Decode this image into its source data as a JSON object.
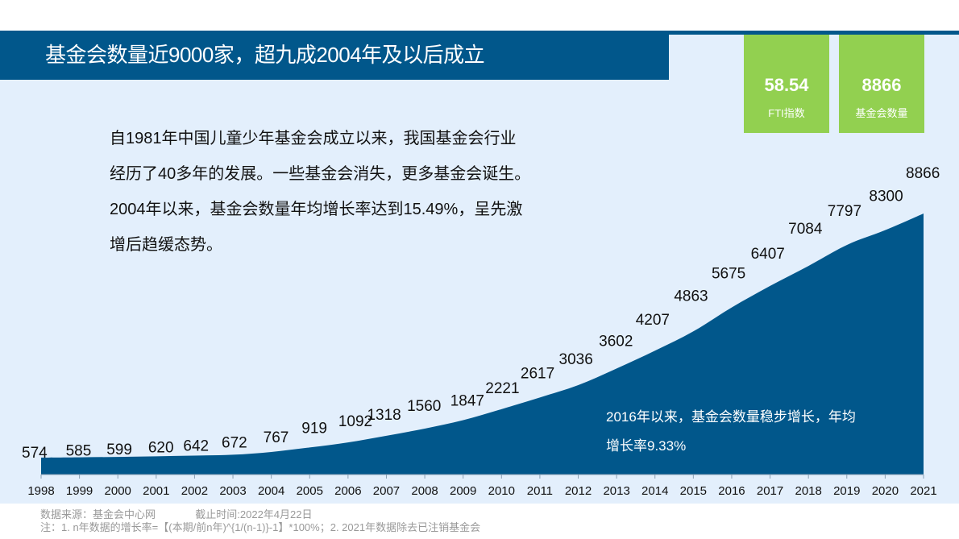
{
  "header": {
    "title": "基金会数量近9000家，超九成2004年及以后成立"
  },
  "kpis": [
    {
      "value": "58.54",
      "label": "FTI指数"
    },
    {
      "value": "8866",
      "label": "基金会数量"
    }
  ],
  "description": {
    "lines": [
      "自1981年中国儿童少年基金会成立以来，我国基金会行业",
      "经历了40多年的发展。一些基金会消失，更多基金会诞生。",
      "2004年以来，基金会数量年均增长率达到15.49%，呈先激",
      "增后趋缓态势。"
    ]
  },
  "callout": {
    "lines": [
      "2016年以来，基金会数量稳步增长，年均",
      "增长率9.33%"
    ]
  },
  "footer": {
    "source": "数据来源：基金会中心网",
    "cutoff": "截止时间:2022年4月22日",
    "note": "注：1. n年数据的增长率=【(本期/前n年)^{1/(n-1)}-1】*100%；2. 2021年数据除去已注销基金会"
  },
  "colors": {
    "primary_blue": "#01578B",
    "panel_bg": "#E3EFFC",
    "kpi_green": "#92D050"
  },
  "chart_data": {
    "type": "area",
    "title": "基金会数量近9000家，超九成2004年及以后成立",
    "xlabel": "",
    "ylabel": "",
    "categories": [
      "1998",
      "1999",
      "2000",
      "2001",
      "2002",
      "2003",
      "2004",
      "2005",
      "2006",
      "2007",
      "2008",
      "2009",
      "2010",
      "2011",
      "2012",
      "2013",
      "2014",
      "2015",
      "2016",
      "2017",
      "2018",
      "2019",
      "2020",
      "2021"
    ],
    "series": [
      {
        "name": "基金会数量",
        "values": [
          574,
          585,
          599,
          620,
          642,
          672,
          767,
          919,
          1092,
          1318,
          1560,
          1847,
          2221,
          2617,
          3036,
          3602,
          4207,
          4863,
          5675,
          6407,
          7084,
          7797,
          8300,
          8866
        ]
      }
    ],
    "data_labels": true,
    "grid": false,
    "legend": "none",
    "annotations": [
      "2016年以来，基金会数量稳步增长，年均增长率9.33%"
    ]
  }
}
